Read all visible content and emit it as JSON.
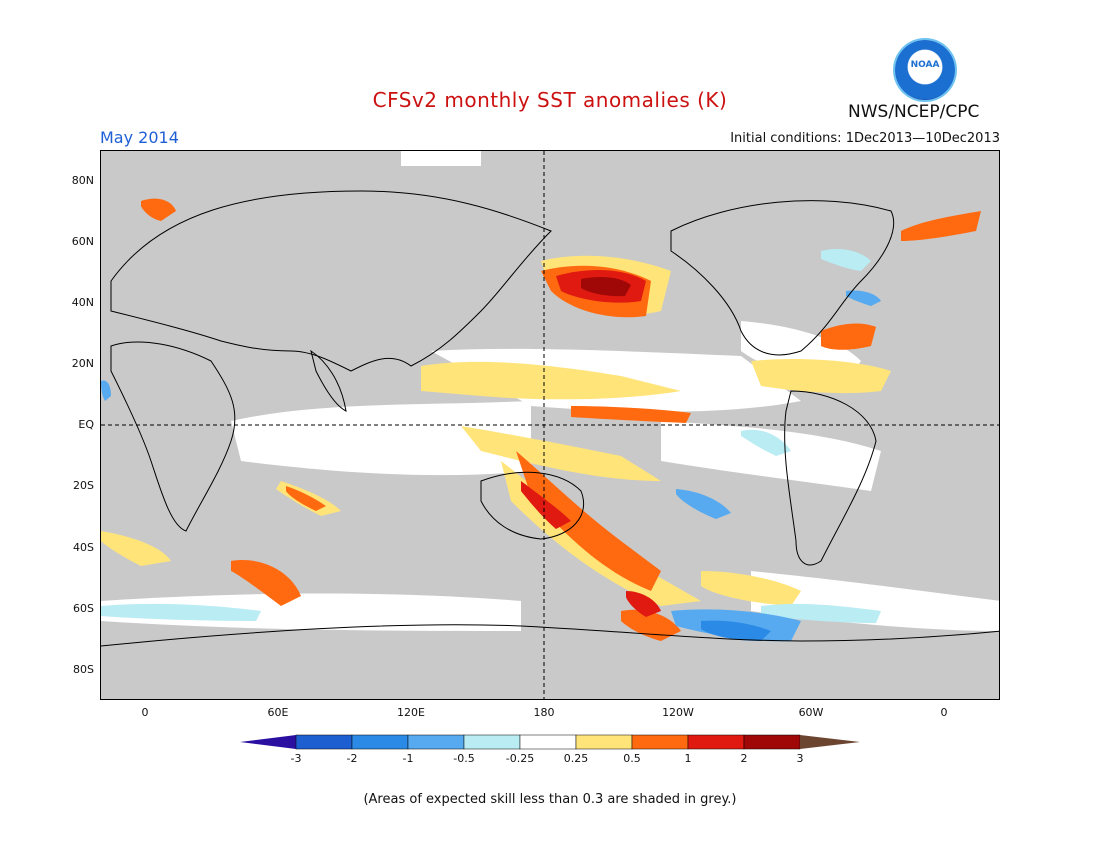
{
  "header": {
    "title": "CFSv2 monthly SST anomalies (K)",
    "month": "May 2014",
    "initial_conditions": "Initial conditions: 1Dec2013—10Dec2013",
    "agency": "NWS/NCEP/CPC",
    "logo_text": "NOAA"
  },
  "map": {
    "y_labels": [
      "80N",
      "60N",
      "40N",
      "20N",
      "EQ",
      "20S",
      "40S",
      "60S",
      "80S"
    ],
    "x_labels": [
      "0",
      "60E",
      "120E",
      "180",
      "120W",
      "60W",
      "0"
    ],
    "land_color": "#c9c9c9",
    "anomaly_patches": [
      {
        "region": "North Pacific",
        "level": "2"
      },
      {
        "region": "Equatorial Pacific",
        "level": "0.5"
      },
      {
        "region": "South Pacific",
        "level": "1"
      },
      {
        "region": "Southern Ocean",
        "level": "-1"
      }
    ]
  },
  "colorbar": {
    "labels": [
      "-3",
      "-2",
      "-1",
      "-0.5",
      "-0.25",
      "0.25",
      "0.5",
      "1",
      "2",
      "3"
    ],
    "colors": [
      "#2a0fa0",
      "#1d5fd0",
      "#2b8ae6",
      "#57aaf0",
      "#b9ecf3",
      "#ffffff",
      "#ffe47a",
      "#ff6a10",
      "#e01a10",
      "#a00808",
      "#6b4530"
    ]
  },
  "footnote": "(Areas of expected skill less than 0.3 are shaded in grey.)"
}
